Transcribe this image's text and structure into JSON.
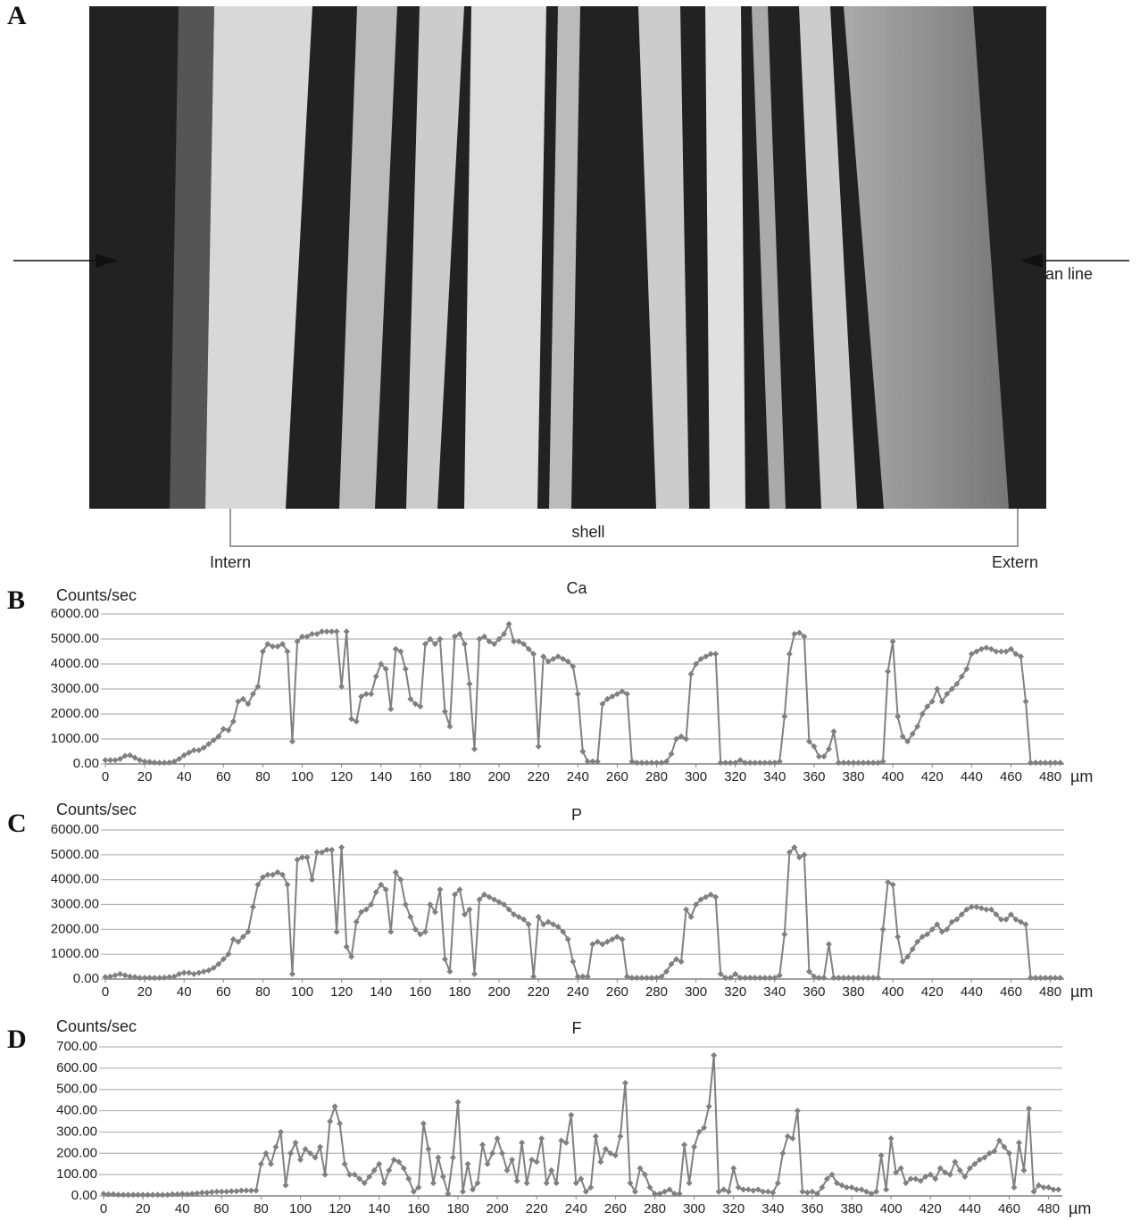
{
  "image": {
    "panel_label": "A",
    "scan_label": "scan line",
    "region_label": "shell",
    "left_label": "Intern",
    "right_label": "Extern"
  },
  "chart_data": [
    {
      "type": "line",
      "panel_label": "B",
      "title": "Ca",
      "y_label": "Counts/sec",
      "x_label": "µm",
      "color": "#808080",
      "marker": "diamond",
      "grid": true,
      "xlim": [
        0,
        487
      ],
      "xticks": [
        0,
        20,
        40,
        60,
        80,
        100,
        120,
        140,
        160,
        180,
        200,
        220,
        240,
        260,
        280,
        300,
        320,
        340,
        360,
        380,
        400,
        420,
        440,
        460,
        480
      ],
      "ylim": [
        0,
        6000
      ],
      "yticks": [
        {
          "value": 0,
          "label": "0.00"
        },
        {
          "value": 1000,
          "label": "1000.00"
        },
        {
          "value": 2000,
          "label": "2000.00"
        },
        {
          "value": 3000,
          "label": "3000.00"
        },
        {
          "value": 4000,
          "label": "4000.00"
        },
        {
          "value": 5000,
          "label": "5000.00"
        },
        {
          "value": 6000,
          "label": "6000.00"
        }
      ],
      "x": [
        0,
        2.5,
        5,
        7.5,
        10,
        12.5,
        15,
        17.5,
        20,
        22.5,
        25,
        27.5,
        30,
        32.5,
        35,
        37.5,
        40,
        42.5,
        45,
        47.5,
        50,
        52.5,
        55,
        57.5,
        60,
        62.5,
        65,
        67.5,
        70,
        72.5,
        75,
        77.5,
        80,
        82.5,
        85,
        87.5,
        90,
        92.5,
        95,
        97.5,
        100,
        102.5,
        105,
        107.5,
        110,
        112.5,
        115,
        117.5,
        120,
        122.5,
        125,
        127.5,
        130,
        132.5,
        135,
        137.5,
        140,
        142.5,
        145,
        147.5,
        150,
        152.5,
        155,
        157.5,
        160,
        162.5,
        165,
        167.5,
        170,
        172.5,
        175,
        177.5,
        180,
        182.5,
        185,
        187.5,
        190,
        192.5,
        195,
        197.5,
        200,
        202.5,
        205,
        207.5,
        210,
        212.5,
        215,
        217.5,
        220,
        222.5,
        225,
        227.5,
        230,
        232.5,
        235,
        237.5,
        240,
        242.5,
        245,
        247.5,
        250,
        252.5,
        255,
        257.5,
        260,
        262.5,
        265,
        267.5,
        270,
        272.5,
        275,
        277.5,
        280,
        282.5,
        285,
        287.5,
        290,
        292.5,
        295,
        297.5,
        300,
        302.5,
        305,
        307.5,
        310,
        312.5,
        315,
        317.5,
        320,
        322.5,
        325,
        327.5,
        330,
        332.5,
        335,
        337.5,
        340,
        342.5,
        345,
        347.5,
        350,
        352.5,
        355,
        357.5,
        360,
        362.5,
        365,
        367.5,
        370,
        372.5,
        375,
        377.5,
        380,
        382.5,
        385,
        387.5,
        390,
        392.5,
        395,
        397.5,
        400,
        402.5,
        405,
        407.5,
        410,
        412.5,
        415,
        417.5,
        420,
        422.5,
        425,
        427.5,
        430,
        432.5,
        435,
        437.5,
        440,
        442.5,
        445,
        447.5,
        450,
        452.5,
        455,
        457.5,
        460,
        462.5,
        465,
        467.5,
        470,
        472.5,
        475,
        477.5,
        480,
        482.5,
        485
      ],
      "values": [
        150,
        150,
        150,
        200,
        320,
        350,
        250,
        150,
        100,
        80,
        60,
        50,
        50,
        60,
        100,
        200,
        350,
        450,
        550,
        550,
        650,
        800,
        950,
        1100,
        1400,
        1350,
        1700,
        2500,
        2600,
        2400,
        2800,
        3100,
        4500,
        4800,
        4700,
        4700,
        4800,
        4500,
        900,
        4900,
        5100,
        5100,
        5200,
        5200,
        5300,
        5300,
        5300,
        5300,
        3100,
        5300,
        1800,
        1700,
        2700,
        2800,
        2800,
        3500,
        4000,
        3800,
        2200,
        4600,
        4500,
        3800,
        2600,
        2400,
        2300,
        4800,
        5000,
        4800,
        5000,
        2100,
        1500,
        5100,
        5200,
        4800,
        3200,
        600,
        5000,
        5100,
        4900,
        4800,
        5000,
        5200,
        5600,
        4900,
        4900,
        4800,
        4600,
        4400,
        700,
        4300,
        4100,
        4200,
        4300,
        4200,
        4100,
        3900,
        2800,
        500,
        100,
        100,
        100,
        2400,
        2600,
        2700,
        2800,
        2900,
        2800,
        100,
        50,
        50,
        50,
        50,
        50,
        50,
        100,
        400,
        1000,
        1100,
        1000,
        3600,
        4000,
        4200,
        4300,
        4400,
        4400,
        50,
        50,
        50,
        50,
        150,
        50,
        50,
        50,
        50,
        50,
        50,
        50,
        100,
        1900,
        4400,
        5200,
        5250,
        5100,
        900,
        700,
        300,
        300,
        600,
        1300,
        50,
        50,
        50,
        50,
        50,
        50,
        50,
        50,
        50,
        100,
        3700,
        4900,
        1900,
        1100,
        900,
        1200,
        1500,
        2000,
        2300,
        2500,
        3000,
        2500,
        2800,
        3000,
        3200,
        3500,
        3800,
        4400,
        4500,
        4600,
        4650,
        4600,
        4500,
        4500,
        4500,
        4600,
        4400,
        4300,
        2500,
        50,
        50,
        50,
        50,
        50,
        50,
        50
      ]
    },
    {
      "type": "line",
      "panel_label": "C",
      "title": "P",
      "y_label": "Counts/sec",
      "x_label": "µm",
      "color": "#808080",
      "marker": "diamond",
      "grid": true,
      "xlim": [
        0,
        487
      ],
      "xticks": [
        0,
        20,
        40,
        60,
        80,
        100,
        120,
        140,
        160,
        180,
        200,
        220,
        240,
        260,
        280,
        300,
        320,
        340,
        360,
        380,
        400,
        420,
        440,
        460,
        480
      ],
      "ylim": [
        0,
        6000
      ],
      "yticks": [
        {
          "value": 0,
          "label": "0.00"
        },
        {
          "value": 1000,
          "label": "1000.00"
        },
        {
          "value": 2000,
          "label": "2000.00"
        },
        {
          "value": 3000,
          "label": "3000.00"
        },
        {
          "value": 4000,
          "label": "4000.00"
        },
        {
          "value": 5000,
          "label": "5000.00"
        },
        {
          "value": 6000,
          "label": "6000.00"
        }
      ],
      "x": [
        0,
        2.5,
        5,
        7.5,
        10,
        12.5,
        15,
        17.5,
        20,
        22.5,
        25,
        27.5,
        30,
        32.5,
        35,
        37.5,
        40,
        42.5,
        45,
        47.5,
        50,
        52.5,
        55,
        57.5,
        60,
        62.5,
        65,
        67.5,
        70,
        72.5,
        75,
        77.5,
        80,
        82.5,
        85,
        87.5,
        90,
        92.5,
        95,
        97.5,
        100,
        102.5,
        105,
        107.5,
        110,
        112.5,
        115,
        117.5,
        120,
        122.5,
        125,
        127.5,
        130,
        132.5,
        135,
        137.5,
        140,
        142.5,
        145,
        147.5,
        150,
        152.5,
        155,
        157.5,
        160,
        162.5,
        165,
        167.5,
        170,
        172.5,
        175,
        177.5,
        180,
        182.5,
        185,
        187.5,
        190,
        192.5,
        195,
        197.5,
        200,
        202.5,
        205,
        207.5,
        210,
        212.5,
        215,
        217.5,
        220,
        222.5,
        225,
        227.5,
        230,
        232.5,
        235,
        237.5,
        240,
        242.5,
        245,
        247.5,
        250,
        252.5,
        255,
        257.5,
        260,
        262.5,
        265,
        267.5,
        270,
        272.5,
        275,
        277.5,
        280,
        282.5,
        285,
        287.5,
        290,
        292.5,
        295,
        297.5,
        300,
        302.5,
        305,
        307.5,
        310,
        312.5,
        315,
        317.5,
        320,
        322.5,
        325,
        327.5,
        330,
        332.5,
        335,
        337.5,
        340,
        342.5,
        345,
        347.5,
        350,
        352.5,
        355,
        357.5,
        360,
        362.5,
        365,
        367.5,
        370,
        372.5,
        375,
        377.5,
        380,
        382.5,
        385,
        387.5,
        390,
        392.5,
        395,
        397.5,
        400,
        402.5,
        405,
        407.5,
        410,
        412.5,
        415,
        417.5,
        420,
        422.5,
        425,
        427.5,
        430,
        432.5,
        435,
        437.5,
        440,
        442.5,
        445,
        447.5,
        450,
        452.5,
        455,
        457.5,
        460,
        462.5,
        465,
        467.5,
        470,
        472.5,
        475,
        477.5,
        480,
        482.5,
        485
      ],
      "values": [
        80,
        100,
        150,
        200,
        150,
        100,
        80,
        50,
        50,
        50,
        50,
        50,
        60,
        80,
        100,
        200,
        250,
        250,
        200,
        250,
        300,
        350,
        450,
        600,
        800,
        1000,
        1600,
        1500,
        1700,
        1900,
        2900,
        3800,
        4100,
        4200,
        4200,
        4300,
        4200,
        3800,
        200,
        4800,
        4900,
        4900,
        4000,
        5100,
        5100,
        5200,
        5200,
        1900,
        5300,
        1300,
        900,
        2300,
        2700,
        2800,
        3000,
        3500,
        3800,
        3600,
        1900,
        4300,
        4000,
        3000,
        2500,
        2000,
        1800,
        1900,
        3000,
        2700,
        3600,
        800,
        300,
        3400,
        3600,
        2600,
        2800,
        200,
        3200,
        3400,
        3300,
        3200,
        3100,
        3000,
        2800,
        2600,
        2500,
        2400,
        2200,
        100,
        2500,
        2200,
        2300,
        2200,
        2100,
        1900,
        1600,
        700,
        100,
        100,
        100,
        1400,
        1500,
        1400,
        1500,
        1600,
        1700,
        1600,
        100,
        50,
        50,
        50,
        50,
        50,
        50,
        100,
        300,
        600,
        800,
        700,
        2800,
        2500,
        3000,
        3200,
        3300,
        3400,
        3300,
        200,
        50,
        50,
        200,
        50,
        50,
        50,
        50,
        50,
        50,
        50,
        50,
        150,
        1800,
        5100,
        5300,
        4900,
        5000,
        300,
        100,
        50,
        50,
        1400,
        50,
        50,
        50,
        50,
        50,
        50,
        50,
        50,
        50,
        50,
        2000,
        3900,
        3800,
        1700,
        700,
        900,
        1200,
        1500,
        1700,
        1800,
        2000,
        2200,
        1900,
        2000,
        2300,
        2400,
        2600,
        2800,
        2900,
        2900,
        2850,
        2800,
        2800,
        2600,
        2400,
        2400,
        2600,
        2400,
        2300,
        2200,
        50,
        50,
        50,
        50,
        50,
        50,
        50
      ]
    },
    {
      "type": "line",
      "panel_label": "D",
      "title": "F",
      "y_label": "Counts/sec",
      "x_label": "µm",
      "color": "#808080",
      "marker": "diamond",
      "grid": true,
      "xlim": [
        0,
        487
      ],
      "xticks": [
        0,
        20,
        40,
        60,
        80,
        100,
        120,
        140,
        160,
        180,
        200,
        220,
        240,
        260,
        280,
        300,
        320,
        340,
        360,
        380,
        400,
        420,
        440,
        460,
        480
      ],
      "ylim": [
        0,
        700
      ],
      "yticks": [
        {
          "value": 0,
          "label": "0.00"
        },
        {
          "value": 100,
          "label": "100.00"
        },
        {
          "value": 200,
          "label": "200.00"
        },
        {
          "value": 300,
          "label": "300.00"
        },
        {
          "value": 400,
          "label": "400.00"
        },
        {
          "value": 500,
          "label": "500.00"
        },
        {
          "value": 600,
          "label": "600.00"
        },
        {
          "value": 700,
          "label": "700.00"
        }
      ],
      "x": [
        0,
        2.5,
        5,
        7.5,
        10,
        12.5,
        15,
        17.5,
        20,
        22.5,
        25,
        27.5,
        30,
        32.5,
        35,
        37.5,
        40,
        42.5,
        45,
        47.5,
        50,
        52.5,
        55,
        57.5,
        60,
        62.5,
        65,
        67.5,
        70,
        72.5,
        75,
        77.5,
        80,
        82.5,
        85,
        87.5,
        90,
        92.5,
        95,
        97.5,
        100,
        102.5,
        105,
        107.5,
        110,
        112.5,
        115,
        117.5,
        120,
        122.5,
        125,
        127.5,
        130,
        132.5,
        135,
        137.5,
        140,
        142.5,
        145,
        147.5,
        150,
        152.5,
        155,
        157.5,
        160,
        162.5,
        165,
        167.5,
        170,
        172.5,
        175,
        177.5,
        180,
        182.5,
        185,
        187.5,
        190,
        192.5,
        195,
        197.5,
        200,
        202.5,
        205,
        207.5,
        210,
        212.5,
        215,
        217.5,
        220,
        222.5,
        225,
        227.5,
        230,
        232.5,
        235,
        237.5,
        240,
        242.5,
        245,
        247.5,
        250,
        252.5,
        255,
        257.5,
        260,
        262.5,
        265,
        267.5,
        270,
        272.5,
        275,
        277.5,
        280,
        282.5,
        285,
        287.5,
        290,
        292.5,
        295,
        297.5,
        300,
        302.5,
        305,
        307.5,
        310,
        312.5,
        315,
        317.5,
        320,
        322.5,
        325,
        327.5,
        330,
        332.5,
        335,
        337.5,
        340,
        342.5,
        345,
        347.5,
        350,
        352.5,
        355,
        357.5,
        360,
        362.5,
        365,
        367.5,
        370,
        372.5,
        375,
        377.5,
        380,
        382.5,
        385,
        387.5,
        390,
        392.5,
        395,
        397.5,
        400,
        402.5,
        405,
        407.5,
        410,
        412.5,
        415,
        417.5,
        420,
        422.5,
        425,
        427.5,
        430,
        432.5,
        435,
        437.5,
        440,
        442.5,
        445,
        447.5,
        450,
        452.5,
        455,
        457.5,
        460,
        462.5,
        465,
        467.5,
        470,
        472.5,
        475,
        477.5,
        480,
        482.5,
        485
      ],
      "values": [
        10,
        8,
        8,
        6,
        5,
        5,
        5,
        5,
        5,
        5,
        5,
        5,
        5,
        5,
        8,
        8,
        10,
        8,
        10,
        12,
        15,
        15,
        18,
        20,
        20,
        20,
        22,
        22,
        25,
        25,
        25,
        25,
        150,
        200,
        150,
        230,
        300,
        50,
        200,
        250,
        170,
        220,
        200,
        180,
        230,
        100,
        350,
        420,
        340,
        150,
        100,
        100,
        80,
        60,
        90,
        120,
        150,
        60,
        120,
        170,
        160,
        130,
        80,
        20,
        40,
        340,
        220,
        60,
        180,
        90,
        10,
        180,
        440,
        20,
        150,
        30,
        60,
        240,
        150,
        200,
        270,
        200,
        120,
        170,
        70,
        250,
        60,
        170,
        160,
        270,
        60,
        120,
        60,
        260,
        250,
        380,
        60,
        80,
        20,
        40,
        280,
        160,
        220,
        200,
        190,
        280,
        530,
        60,
        20,
        130,
        100,
        40,
        10,
        10,
        20,
        30,
        10,
        10,
        240,
        60,
        230,
        300,
        320,
        420,
        660,
        20,
        30,
        20,
        130,
        40,
        30,
        30,
        25,
        30,
        20,
        20,
        15,
        60,
        200,
        280,
        270,
        400,
        20,
        15,
        20,
        10,
        40,
        80,
        100,
        60,
        50,
        40,
        40,
        30,
        30,
        20,
        10,
        20,
        190,
        30,
        270,
        110,
        130,
        60,
        80,
        80,
        70,
        90,
        100,
        80,
        130,
        110,
        100,
        160,
        120,
        90,
        130,
        150,
        170,
        180,
        200,
        210,
        260,
        230,
        200,
        40,
        250,
        120,
        410,
        20,
        50,
        40,
        40,
        30,
        30
      ]
    }
  ]
}
